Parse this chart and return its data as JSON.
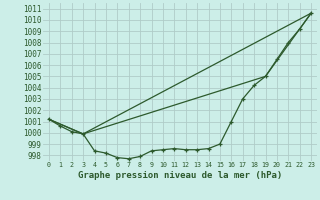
{
  "title": "Graphe pression niveau de la mer (hPa)",
  "background_color": "#cceee8",
  "grid_color": "#b0ccc8",
  "line_color": "#2d5a2d",
  "xlim": [
    -0.5,
    23.5
  ],
  "ylim": [
    997.5,
    1011.5
  ],
  "yticks": [
    998,
    999,
    1000,
    1001,
    1002,
    1003,
    1004,
    1005,
    1006,
    1007,
    1008,
    1009,
    1010,
    1011
  ],
  "xticks": [
    0,
    1,
    2,
    3,
    4,
    5,
    6,
    7,
    8,
    9,
    10,
    11,
    12,
    13,
    14,
    15,
    16,
    17,
    18,
    19,
    20,
    21,
    22,
    23
  ],
  "line1_x": [
    0,
    1,
    2,
    3,
    4,
    5,
    6,
    7,
    8,
    9,
    10,
    11,
    12,
    13,
    14,
    15,
    16,
    17,
    18,
    19,
    20,
    21,
    22,
    23
  ],
  "line1_y": [
    1001.2,
    1000.6,
    1000.1,
    999.9,
    998.4,
    998.2,
    997.8,
    997.7,
    997.9,
    998.4,
    998.5,
    998.6,
    998.5,
    998.5,
    998.6,
    999.0,
    1001.0,
    1003.0,
    1004.2,
    1005.0,
    1006.5,
    1008.0,
    1009.2,
    1010.6
  ],
  "line2_x": [
    0,
    3,
    23
  ],
  "line2_y": [
    1001.2,
    999.9,
    1010.6
  ],
  "line3_x": [
    0,
    3,
    19,
    23
  ],
  "line3_y": [
    1001.2,
    999.9,
    1005.0,
    1010.6
  ],
  "title_fontsize": 6.5,
  "tick_fontsize": 5.5,
  "xtick_fontsize": 4.8
}
